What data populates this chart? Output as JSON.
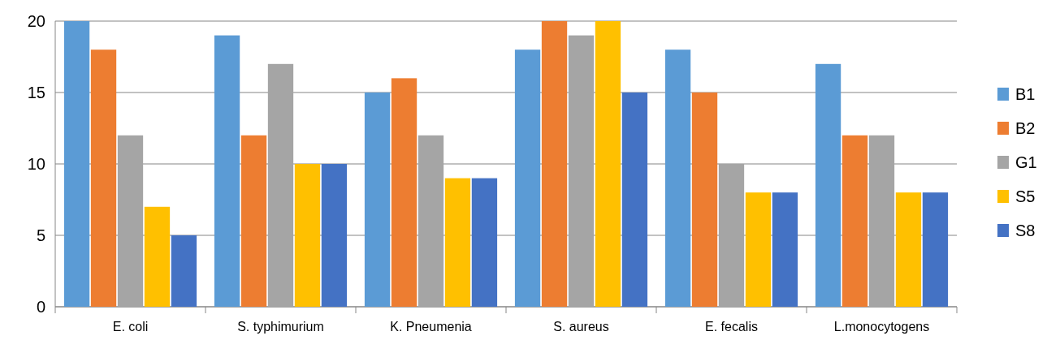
{
  "chart_data": {
    "type": "bar",
    "categories": [
      "E. coli",
      "S. typhimurium",
      "K. Pneumenia",
      "S. aureus",
      "E. fecalis",
      "L.monocytogens"
    ],
    "series": [
      {
        "name": "B1",
        "color": "#5b9bd5",
        "values": [
          20,
          19,
          15,
          18,
          18,
          17
        ]
      },
      {
        "name": "B2",
        "color": "#ed7d31",
        "values": [
          18,
          12,
          16,
          20,
          15,
          12
        ]
      },
      {
        "name": "G1",
        "color": "#a5a5a5",
        "values": [
          12,
          17,
          12,
          19,
          10,
          12
        ]
      },
      {
        "name": "S5",
        "color": "#ffc000",
        "values": [
          7,
          10,
          9,
          20,
          8,
          8
        ]
      },
      {
        "name": "S8",
        "color": "#4472c4",
        "values": [
          5,
          10,
          9,
          15,
          8,
          8
        ]
      }
    ],
    "ylim": [
      0,
      20
    ],
    "yticks": [
      0,
      5,
      10,
      15,
      20
    ],
    "grid": "y",
    "legend": "right"
  }
}
